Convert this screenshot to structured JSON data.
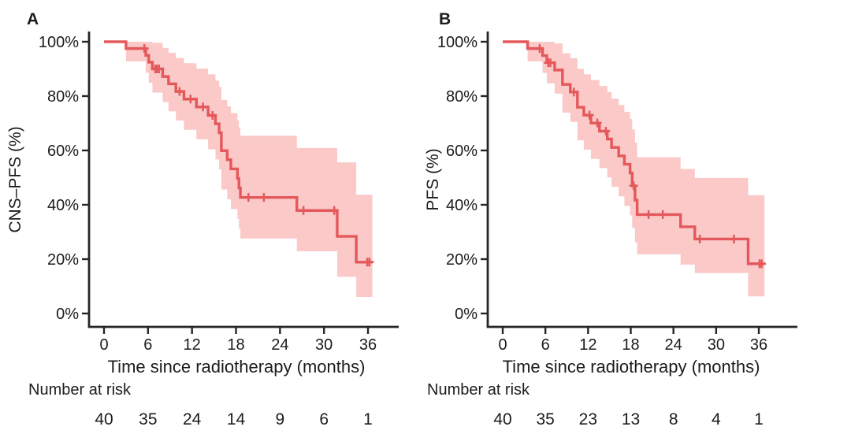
{
  "chart_data": [
    {
      "type": "line",
      "subtype": "kaplan-meier-step",
      "panel_label": "A",
      "ylabel": "CNS–PFS (%)",
      "xlabel": "Time since radiotherapy (months)",
      "xlim": [
        0,
        42
      ],
      "ylim": [
        0,
        100
      ],
      "x_ticks": [
        0,
        6,
        12,
        18,
        24,
        30,
        36
      ],
      "y_ticks": [
        100,
        80,
        60,
        40,
        20,
        0
      ],
      "y_tick_labels": [
        "100%",
        "80%",
        "60%",
        "40%",
        "20%",
        "0%"
      ],
      "grid": false,
      "legend": "none",
      "series": [
        {
          "name": "CNS-PFS with 95% CI",
          "x": [
            0,
            3.0,
            5.7,
            6.1,
            6.6,
            8.0,
            8.8,
            9.8,
            10.9,
            12.6,
            14.2,
            15.2,
            15.7,
            16.0,
            16.8,
            17.3,
            18.2,
            18.4,
            18.6,
            26.3,
            31.8,
            34.4
          ],
          "y": [
            100,
            97.5,
            95.0,
            92.5,
            90.0,
            87.2,
            84.5,
            81.7,
            78.9,
            76.0,
            72.9,
            69.8,
            66.5,
            59.9,
            56.6,
            53.2,
            49.7,
            46.2,
            42.7,
            37.9,
            28.4,
            18.9
          ],
          "lower": [
            100,
            92.8,
            88.6,
            84.9,
            81.3,
            77.8,
            74.4,
            71.0,
            67.6,
            64.1,
            60.4,
            56.7,
            53.0,
            45.6,
            42.0,
            38.4,
            34.8,
            31.2,
            27.6,
            22.9,
            13.5,
            6.1
          ],
          "upper": [
            100,
            100,
            100,
            100,
            99.6,
            97.7,
            95.9,
            94.0,
            92.1,
            90.1,
            88.0,
            85.7,
            83.4,
            78.6,
            76.2,
            73.7,
            71.0,
            68.3,
            65.4,
            60.9,
            55.6,
            43.7
          ]
        }
      ],
      "curve_end_x": 36.6,
      "censor_marks": {
        "x": [
          5.5,
          7.0,
          7.2,
          7.5,
          10.3,
          11.8,
          13.5,
          14.8,
          19.7,
          21.8,
          27.2,
          31.4,
          35.9,
          36.2
        ],
        "y": [
          97.5,
          90.0,
          90.0,
          90.0,
          81.7,
          78.9,
          76.0,
          72.9,
          42.7,
          42.7,
          37.9,
          37.9,
          18.9,
          18.9
        ]
      },
      "risk_table": {
        "label": "Number at risk",
        "times": [
          0,
          6,
          12,
          18,
          24,
          30,
          36
        ],
        "counts": [
          "40",
          "35",
          "24",
          "14",
          "9",
          "6",
          "1"
        ]
      }
    },
    {
      "type": "line",
      "subtype": "kaplan-meier-step",
      "panel_label": "B",
      "ylabel": "PFS (%)",
      "xlabel": "Time since radiotherapy (months)",
      "xlim": [
        0,
        42
      ],
      "ylim": [
        0,
        100
      ],
      "x_ticks": [
        0,
        6,
        12,
        18,
        24,
        30,
        36
      ],
      "y_ticks": [
        100,
        80,
        60,
        40,
        20,
        0
      ],
      "y_tick_labels": [
        "100%",
        "80%",
        "60%",
        "40%",
        "20%",
        "0%"
      ],
      "grid": false,
      "legend": "none",
      "series": [
        {
          "name": "PFS with 95% CI",
          "x": [
            0,
            3.5,
            5.6,
            6.2,
            7.3,
            8.4,
            9.5,
            10.5,
            11.4,
            12.4,
            13.6,
            14.7,
            15.3,
            16.3,
            17.1,
            17.9,
            18.2,
            18.6,
            18.9,
            25.0,
            27.0,
            34.5
          ],
          "y": [
            100,
            97.5,
            94.9,
            92.3,
            89.6,
            84.3,
            81.5,
            75.9,
            73.0,
            70.1,
            67.1,
            64.2,
            61.1,
            58.0,
            54.9,
            51.7,
            47.0,
            41.7,
            36.4,
            31.9,
            27.4,
            18.3
          ],
          "lower": [
            100,
            92.8,
            88.5,
            84.7,
            80.9,
            73.9,
            70.5,
            63.7,
            60.3,
            56.9,
            53.5,
            50.1,
            46.6,
            43.1,
            39.6,
            36.1,
            31.4,
            26.2,
            21.8,
            18.0,
            14.9,
            6.3
          ],
          "upper": [
            100,
            100,
            100,
            100,
            99.4,
            95.8,
            93.9,
            90.0,
            88.0,
            85.9,
            83.7,
            81.5,
            79.1,
            76.7,
            74.2,
            71.6,
            67.7,
            62.9,
            57.5,
            53.2,
            49.9,
            43.5
          ]
        }
      ],
      "curve_end_x": 36.8,
      "censor_marks": {
        "x": [
          5.2,
          6.4,
          6.7,
          10.0,
          12.2,
          13.3,
          14.5,
          18.4,
          20.5,
          22.5,
          27.7,
          32.5,
          36.1,
          36.4
        ],
        "y": [
          97.5,
          92.3,
          92.3,
          81.5,
          73.0,
          70.1,
          67.1,
          47.0,
          36.4,
          36.4,
          27.4,
          27.4,
          18.3,
          18.3
        ]
      },
      "risk_table": {
        "label": "Number at risk",
        "times": [
          0,
          6,
          12,
          18,
          24,
          30,
          36
        ],
        "counts": [
          "40",
          "35",
          "23",
          "13",
          "8",
          "4",
          "1"
        ]
      }
    }
  ],
  "colors": {
    "curve": "#e4585b",
    "band": "#fac9c8",
    "axis": "#262626",
    "text": "#1c1c1c"
  }
}
